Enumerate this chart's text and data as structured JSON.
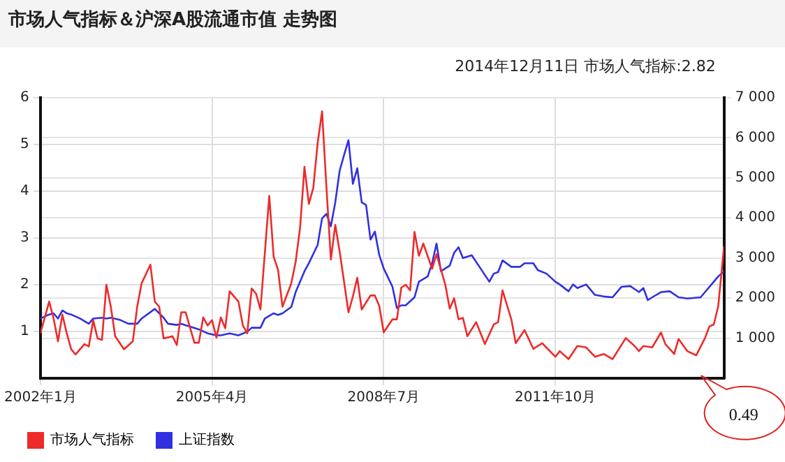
{
  "chart_data": {
    "type": "line",
    "title": "市场人气指标＆沪深A股流通市值 走势图",
    "annotations": [
      "2014年12月11日 市场人气指标:2.82",
      "0.49"
    ],
    "xlim": [
      "2002-01",
      "2014-12-11"
    ],
    "xticks": [
      {
        "value": "2002-01",
        "label": "2002年1月"
      },
      {
        "value": "2005-04",
        "label": "2005年4月"
      },
      {
        "value": "2008-07",
        "label": "2008年7月"
      },
      {
        "value": "2011-10",
        "label": "2011年10月"
      }
    ],
    "ylim": [
      0,
      6
    ],
    "yticks": [
      1,
      2,
      3,
      4,
      5,
      6
    ],
    "y2lim": [
      0,
      7000
    ],
    "y2ticks": [
      {
        "value": 1000,
        "label": "1 000"
      },
      {
        "value": 2000,
        "label": "2 000"
      },
      {
        "value": 3000,
        "label": "3 000"
      },
      {
        "value": 4000,
        "label": "4 000"
      },
      {
        "value": 5000,
        "label": "5 000"
      },
      {
        "value": 6000,
        "label": "6 000"
      },
      {
        "value": 7000,
        "label": "7 000"
      }
    ],
    "grid": true,
    "legend": "bottom left",
    "marker": "none",
    "line_style": "solid",
    "series": [
      {
        "name": "市场人气指标",
        "color": "#ee2a2a",
        "x": [
          "2002-01",
          "2002-03",
          "2002-04",
          "2002-05",
          "2002-06",
          "2002-07",
          "2002-08",
          "2002-09",
          "2002-11",
          "2002-12",
          "2003-01",
          "2003-02",
          "2003-03",
          "2003-04",
          "2003-05",
          "2003-06",
          "2003-08",
          "2003-10",
          "2003-11",
          "2003-12",
          "2004-02",
          "2004-03",
          "2004-04",
          "2004-05",
          "2004-07",
          "2004-08",
          "2004-09",
          "2004-10",
          "2004-12",
          "2005-01",
          "2005-02",
          "2005-03",
          "2005-04",
          "2005-05",
          "2005-06",
          "2005-07",
          "2005-08",
          "2005-10",
          "2005-11",
          "2005-12",
          "2006-01",
          "2006-02",
          "2006-03",
          "2006-05",
          "2006-06",
          "2006-07",
          "2006-08",
          "2006-10",
          "2006-11",
          "2006-12",
          "2007-01",
          "2007-02",
          "2007-03",
          "2007-04",
          "2007-05",
          "2007-06",
          "2007-07",
          "2007-08",
          "2007-09",
          "2007-11",
          "2007-12",
          "2008-01",
          "2008-02",
          "2008-04",
          "2008-05",
          "2008-06",
          "2008-07",
          "2008-09",
          "2008-10",
          "2008-11",
          "2008-12",
          "2009-01",
          "2009-02",
          "2009-03",
          "2009-04",
          "2009-06",
          "2009-07",
          "2009-09",
          "2009-10",
          "2009-11",
          "2009-12",
          "2010-01",
          "2010-02",
          "2010-04",
          "2010-06",
          "2010-08",
          "2010-09",
          "2010-10",
          "2010-12",
          "2011-01",
          "2011-03",
          "2011-05",
          "2011-07",
          "2011-10",
          "2011-11",
          "2012-01",
          "2012-03",
          "2012-05",
          "2012-07",
          "2012-09",
          "2012-11",
          "2013-02",
          "2013-04",
          "2013-05",
          "2013-06",
          "2013-08",
          "2013-10",
          "2013-11",
          "2014-01",
          "2014-02",
          "2014-04",
          "2014-06",
          "2014-08",
          "2014-09",
          "2014-10",
          "2014-11",
          "2014-12-11"
        ],
        "values": [
          0.96,
          1.64,
          1.28,
          0.79,
          1.36,
          0.96,
          0.62,
          0.51,
          0.73,
          0.68,
          1.24,
          0.85,
          0.82,
          2.0,
          1.53,
          0.9,
          0.62,
          0.79,
          1.53,
          2.03,
          2.43,
          1.64,
          1.53,
          0.85,
          0.9,
          0.71,
          1.41,
          1.41,
          0.76,
          0.76,
          1.3,
          1.13,
          1.24,
          0.87,
          1.3,
          1.07,
          1.86,
          1.64,
          1.13,
          0.96,
          1.92,
          1.81,
          1.47,
          3.9,
          2.6,
          2.32,
          1.53,
          2.03,
          2.49,
          3.22,
          4.52,
          3.73,
          4.07,
          5.03,
          5.71,
          4.07,
          2.54,
          3.28,
          2.71,
          1.41,
          1.75,
          2.15,
          1.47,
          1.77,
          1.77,
          1.54,
          0.98,
          1.26,
          1.26,
          1.94,
          2.0,
          1.88,
          3.13,
          2.62,
          2.88,
          2.34,
          2.65,
          2.0,
          1.49,
          1.71,
          1.26,
          1.29,
          0.9,
          1.2,
          0.73,
          1.15,
          1.2,
          1.88,
          1.26,
          0.75,
          1.03,
          0.63,
          0.75,
          0.46,
          0.58,
          0.41,
          0.69,
          0.66,
          0.46,
          0.52,
          0.41,
          0.86,
          0.69,
          0.58,
          0.69,
          0.66,
          0.98,
          0.73,
          0.52,
          0.84,
          0.58,
          0.49,
          0.86,
          1.11,
          1.15,
          1.54,
          2.82
        ]
      },
      {
        "name": "上证指数",
        "color": "#3030e0",
        "axis": "y2",
        "x": [
          "2002-01",
          "2002-03",
          "2002-04",
          "2002-05",
          "2002-06",
          "2002-07",
          "2002-08",
          "2002-10",
          "2002-12",
          "2003-01",
          "2003-03",
          "2003-04",
          "2003-05",
          "2003-07",
          "2003-09",
          "2003-11",
          "2003-12",
          "2004-03",
          "2004-05",
          "2004-06",
          "2004-08",
          "2004-09",
          "2004-11",
          "2005-01",
          "2005-03",
          "2005-05",
          "2005-06",
          "2005-08",
          "2005-10",
          "2005-12",
          "2006-01",
          "2006-03",
          "2006-04",
          "2006-06",
          "2006-07",
          "2006-08",
          "2006-10",
          "2006-11",
          "2007-01",
          "2007-02",
          "2007-04",
          "2007-05",
          "2007-06",
          "2007-07",
          "2007-08",
          "2007-09",
          "2007-10",
          "2007-11",
          "2007-12",
          "2008-01",
          "2008-02",
          "2008-03",
          "2008-04",
          "2008-05",
          "2008-06",
          "2008-07",
          "2008-09",
          "2008-10",
          "2008-11",
          "2008-12",
          "2009-02",
          "2009-03",
          "2009-05",
          "2009-06",
          "2009-07",
          "2009-08",
          "2009-10",
          "2009-11",
          "2009-12",
          "2010-01",
          "2010-03",
          "2010-05",
          "2010-07",
          "2010-08",
          "2010-09",
          "2010-10",
          "2010-12",
          "2011-02",
          "2011-03",
          "2011-05",
          "2011-06",
          "2011-08",
          "2011-10",
          "2011-11",
          "2012-01",
          "2012-02",
          "2012-03",
          "2012-05",
          "2012-07",
          "2012-09",
          "2012-11",
          "2013-01",
          "2013-03",
          "2013-05",
          "2013-06",
          "2013-07",
          "2013-08",
          "2013-10",
          "2013-12",
          "2014-02",
          "2014-04",
          "2014-07",
          "2014-08",
          "2014-10",
          "2014-11",
          "2014-12-11"
        ],
        "values": [
          1490,
          1590,
          1620,
          1490,
          1690,
          1620,
          1590,
          1490,
          1360,
          1490,
          1510,
          1490,
          1510,
          1460,
          1360,
          1360,
          1490,
          1730,
          1510,
          1360,
          1330,
          1360,
          1290,
          1220,
          1120,
          1070,
          1070,
          1120,
          1070,
          1160,
          1260,
          1260,
          1490,
          1620,
          1580,
          1620,
          1780,
          2150,
          2670,
          2870,
          3330,
          3990,
          4100,
          3790,
          4390,
          5180,
          5570,
          5940,
          4850,
          5240,
          4390,
          4320,
          3460,
          3660,
          3070,
          2740,
          2280,
          1750,
          1820,
          1820,
          2020,
          2410,
          2540,
          2870,
          3360,
          2670,
          2810,
          3130,
          3270,
          3000,
          3070,
          2740,
          2410,
          2610,
          2650,
          2940,
          2780,
          2780,
          2870,
          2870,
          2700,
          2610,
          2410,
          2340,
          2170,
          2340,
          2250,
          2340,
          2080,
          2040,
          2020,
          2280,
          2300,
          2150,
          2250,
          1950,
          2020,
          2150,
          2170,
          2020,
          1990,
          2020,
          2150,
          2410,
          2540,
          2670
        ]
      }
    ]
  }
}
